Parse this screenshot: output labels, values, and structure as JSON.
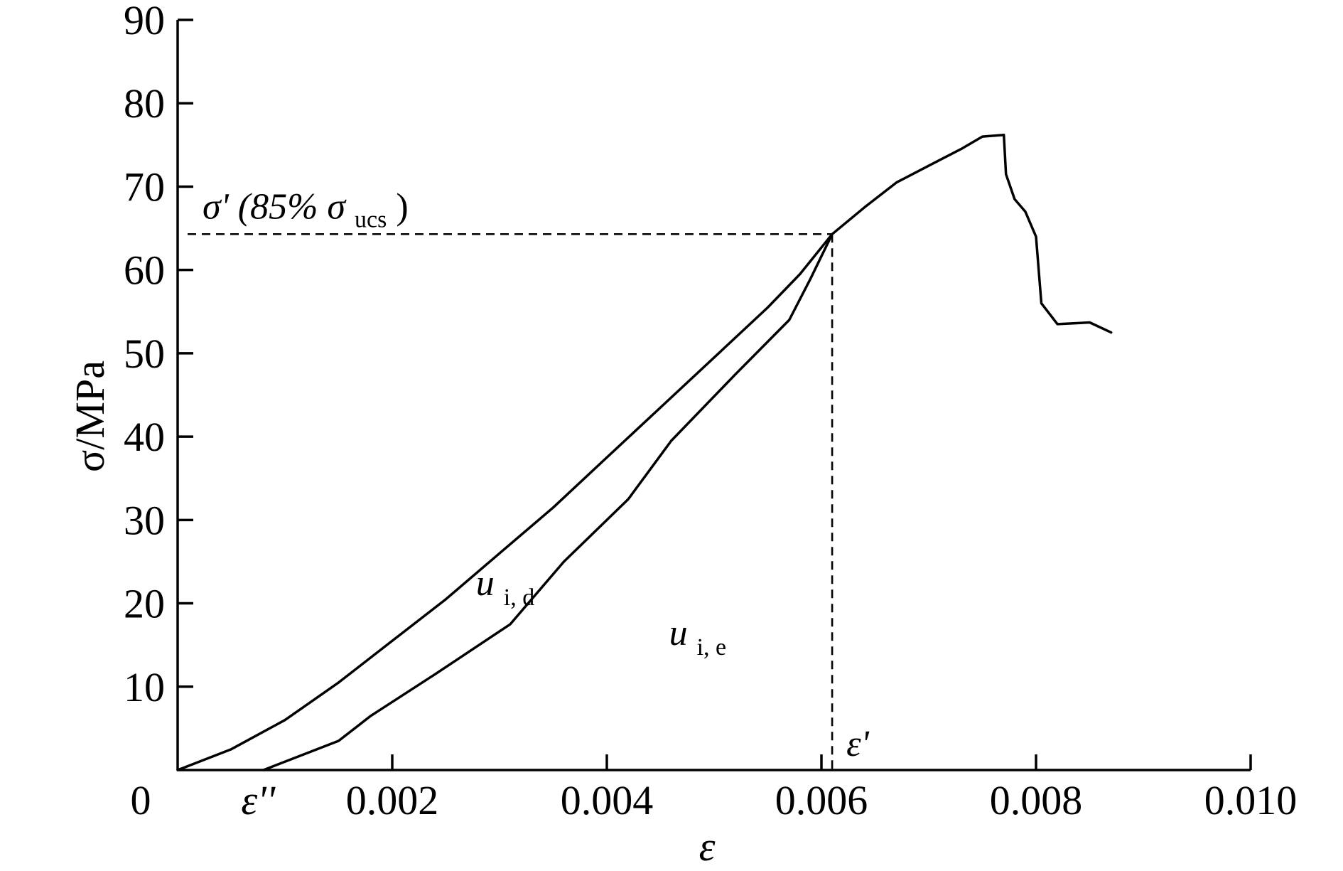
{
  "chart_data": {
    "type": "line",
    "title": "",
    "xlabel": "ε",
    "ylabel": "σ/MPa",
    "xlim": [
      0,
      0.01
    ],
    "ylim": [
      0,
      90
    ],
    "grid": false,
    "x_ticks": [
      {
        "value": 0,
        "label": "0"
      },
      {
        "value": 0.002,
        "label": "0.002"
      },
      {
        "value": 0.004,
        "label": "0.004"
      },
      {
        "value": 0.006,
        "label": "0.006"
      },
      {
        "value": 0.008,
        "label": "0.008"
      },
      {
        "value": 0.01,
        "label": "0.010"
      }
    ],
    "y_ticks": [
      {
        "value": 10,
        "label": "10"
      },
      {
        "value": 20,
        "label": "20"
      },
      {
        "value": 30,
        "label": "30"
      },
      {
        "value": 40,
        "label": "40"
      },
      {
        "value": 50,
        "label": "50"
      },
      {
        "value": 60,
        "label": "60"
      },
      {
        "value": 70,
        "label": "70"
      },
      {
        "value": 80,
        "label": "80"
      },
      {
        "value": 90,
        "label": "90"
      }
    ],
    "series": [
      {
        "points": [
          [
            0,
            0
          ],
          [
            0.0005,
            2.5
          ],
          [
            0.001,
            6
          ],
          [
            0.0015,
            10.5
          ],
          [
            0.002,
            15.5
          ],
          [
            0.0025,
            20.5
          ],
          [
            0.003,
            26
          ],
          [
            0.0035,
            31.5
          ],
          [
            0.004,
            37.5
          ],
          [
            0.0045,
            43.5
          ],
          [
            0.005,
            49.5
          ],
          [
            0.0055,
            55.5
          ],
          [
            0.0058,
            59.5
          ],
          [
            0.0061,
            64.3
          ],
          [
            0.0064,
            67.5
          ],
          [
            0.0067,
            70.5
          ],
          [
            0.007,
            72.5
          ],
          [
            0.0073,
            74.5
          ],
          [
            0.0075,
            76
          ],
          [
            0.0077,
            76.2
          ],
          [
            0.00772,
            71.5
          ],
          [
            0.0078,
            68.5
          ],
          [
            0.0079,
            67
          ],
          [
            0.008,
            64
          ],
          [
            0.00805,
            56
          ],
          [
            0.0082,
            53.5
          ],
          [
            0.0085,
            53.7
          ],
          [
            0.0087,
            52.5
          ]
        ]
      },
      {
        "points": [
          [
            0.0008,
            0
          ],
          [
            0.0015,
            3.5
          ],
          [
            0.0018,
            6.5
          ],
          [
            0.0024,
            11.5
          ],
          [
            0.0031,
            17.5
          ],
          [
            0.0036,
            25
          ],
          [
            0.0042,
            32.5
          ],
          [
            0.0046,
            39.5
          ],
          [
            0.0052,
            47.5
          ],
          [
            0.0057,
            54
          ],
          [
            0.0059,
            59
          ],
          [
            0.0061,
            64.3
          ]
        ]
      }
    ],
    "reference": {
      "sigma_prime": 64.3,
      "epsilon_prime": 0.0061,
      "epsilon_double_prime": 0.00075
    },
    "annotations": {
      "sigma_prime_main": "σ' (85% σ",
      "sigma_prime_sub": "ucs",
      "sigma_prime_close": ")",
      "u_d_main": "u",
      "u_d_sub": "i, d",
      "u_e_main": "u",
      "u_e_sub": "i, e",
      "eps_prime": "ε'",
      "eps_double_prime": "ε''"
    }
  }
}
